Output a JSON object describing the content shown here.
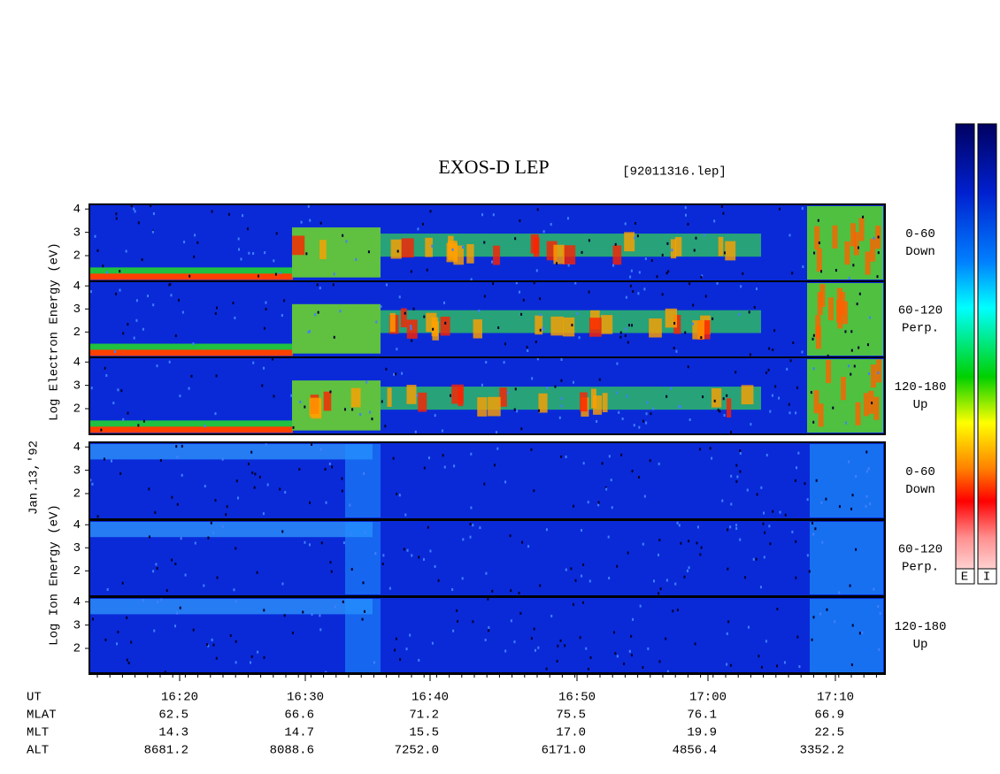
{
  "title": "EXOS-D LEP",
  "file": "[92011316.lep]",
  "date_label": "Jan.13,'92",
  "groups": [
    {
      "ylabel": "Log Electron Energy (eV)",
      "panels": [
        {
          "label": [
            "0-60",
            "Down"
          ],
          "ylim": [
            0.9,
            4.2
          ],
          "yticks": [
            2,
            3,
            4
          ]
        },
        {
          "label": [
            "60-120",
            "Perp."
          ],
          "ylim": [
            0.9,
            4.2
          ],
          "yticks": [
            2,
            3,
            4
          ]
        },
        {
          "label": [
            "120-180",
            "Up"
          ],
          "ylim": [
            0.9,
            4.2
          ],
          "yticks": [
            2,
            3,
            4
          ]
        }
      ]
    },
    {
      "ylabel": "Log Ion Energy (eV)",
      "panels": [
        {
          "label": [
            "0-60",
            "Down"
          ],
          "ylim": [
            0.9,
            4.2
          ],
          "yticks": [
            2,
            3,
            4
          ]
        },
        {
          "label": [
            "60-120",
            "Perp."
          ],
          "ylim": [
            0.9,
            4.2
          ],
          "yticks": [
            2,
            3,
            4
          ]
        },
        {
          "label": [
            "120-180",
            "Up"
          ],
          "ylim": [
            0.9,
            4.2
          ],
          "yticks": [
            2,
            3,
            4
          ]
        }
      ]
    }
  ],
  "table": {
    "rows": [
      {
        "label": "UT",
        "values": [
          "16:20",
          "16:30",
          "16:40",
          "16:50",
          "17:00",
          "17:10"
        ]
      },
      {
        "label": "MLAT",
        "values": [
          "62.5",
          "66.6",
          "71.2",
          "75.5",
          "76.1",
          "66.9"
        ]
      },
      {
        "label": "MLT",
        "values": [
          "14.3",
          "14.7",
          "15.5",
          "17.0",
          "19.9",
          "22.5"
        ]
      },
      {
        "label": "ALT",
        "values": [
          "8681.2",
          "8088.6",
          "7252.0",
          "6171.0",
          "4856.4",
          "3352.2"
        ]
      }
    ]
  },
  "colorbars": [
    "E",
    "I"
  ]
}
